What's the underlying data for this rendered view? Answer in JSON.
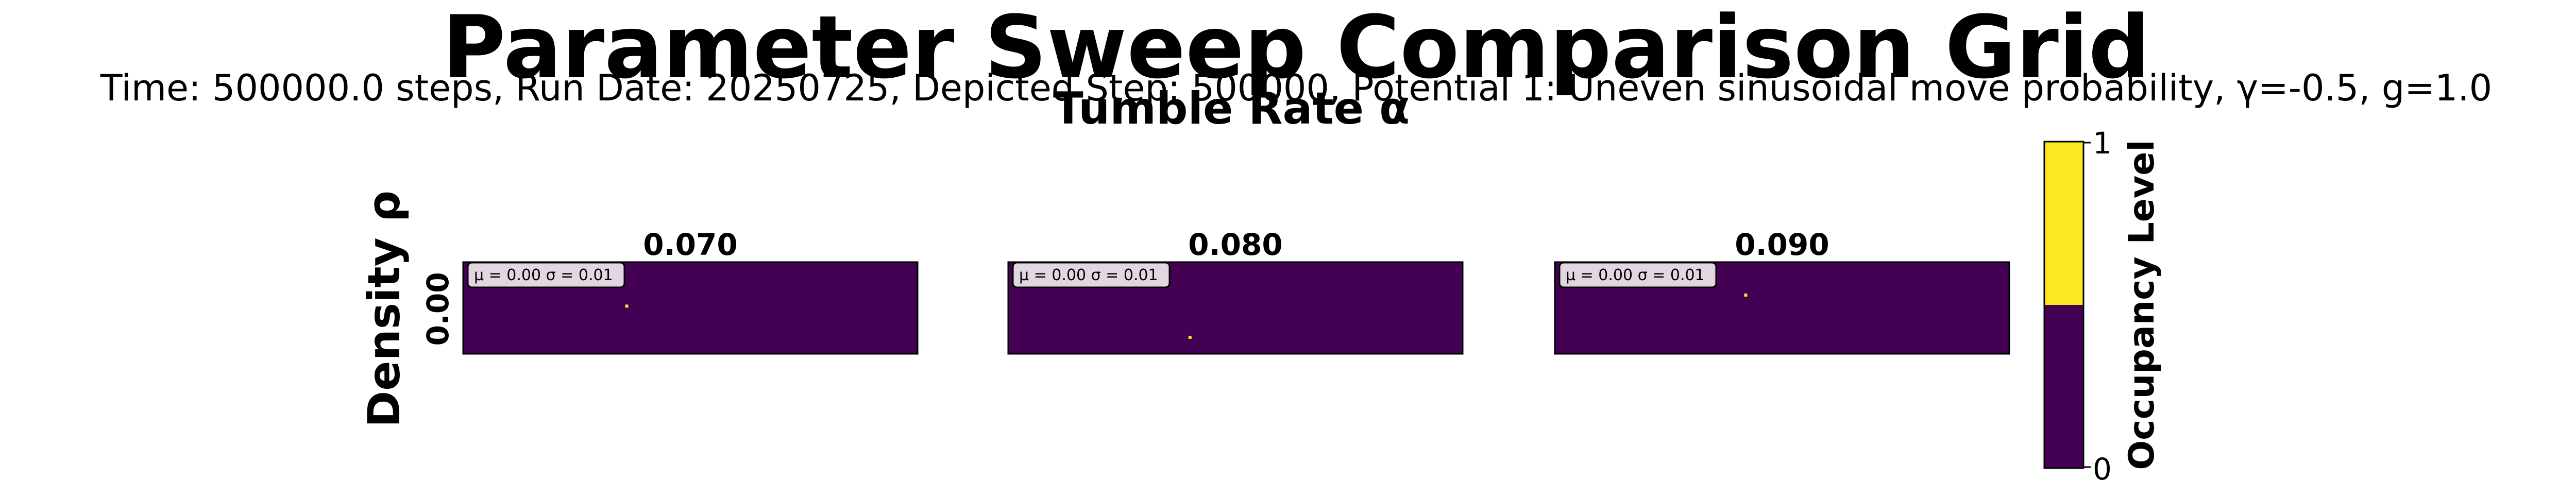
{
  "figure": {
    "title": "Parameter Sweep Comparison Grid",
    "subtitle": "Time: 500000.0 steps, Run Date: 20250725, Depicted Step: 500000, Potential 1: Uneven sinusoidal move probability, γ=-0.5, g=1.0",
    "column_axis_title": "Tumble Rate α",
    "row_axis_title": "Density ρ",
    "row_labels": [
      "0.00"
    ],
    "colors": {
      "background_cell": "#440154",
      "occupied_cell": "#fde725",
      "stat_box_bg": "#e3d6e3"
    }
  },
  "panels": [
    {
      "title": "0.070",
      "stats": "μ = 0.00  σ = 0.01"
    },
    {
      "title": "0.080",
      "stats": "μ = 0.00  σ = 0.01"
    },
    {
      "title": "0.090",
      "stats": "μ = 0.00  σ = 0.01"
    }
  ],
  "colorbar": {
    "label": "Occupancy Level",
    "ticks": [
      "0",
      "1"
    ],
    "colors": [
      "#440154",
      "#fde725"
    ]
  },
  "chart_data": {
    "type": "heatmap",
    "title": "Parameter Sweep Comparison Grid",
    "xlabel": "Tumble Rate α",
    "ylabel": "Density ρ",
    "column_values": [
      0.07,
      0.08,
      0.09
    ],
    "row_values": [
      0.0
    ],
    "value_range": [
      0,
      1
    ],
    "colorbar_label": "Occupancy Level",
    "panels": [
      {
        "alpha": 0.07,
        "rho": 0.0,
        "mean": 0.0,
        "std": 0.01,
        "occupied_cells": [
          {
            "x": 0.36,
            "y": 0.48
          }
        ]
      },
      {
        "alpha": 0.08,
        "rho": 0.0,
        "mean": 0.0,
        "std": 0.01,
        "occupied_cells": [
          {
            "x": 0.4,
            "y": 0.82
          }
        ]
      },
      {
        "alpha": 0.09,
        "rho": 0.0,
        "mean": 0.0,
        "std": 0.01,
        "occupied_cells": [
          {
            "x": 0.42,
            "y": 0.36
          }
        ]
      }
    ]
  }
}
